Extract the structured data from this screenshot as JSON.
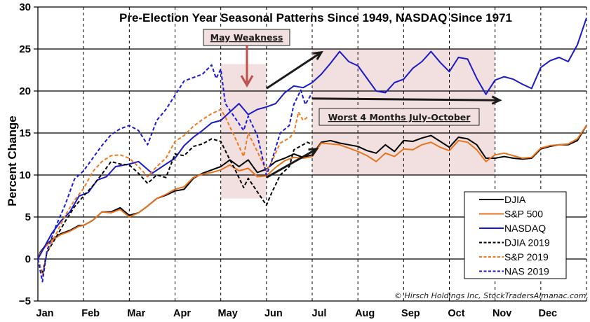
{
  "chart_data": {
    "type": "line",
    "title": "Pre-Election Year Seasonal Patterns Since 1949, NASDAQ Since 1971",
    "xlabel": "",
    "ylabel": "Percent Change",
    "ylim": [
      -5,
      30
    ],
    "yticks": [
      -5,
      0,
      5,
      10,
      15,
      20,
      25,
      30
    ],
    "xlim": [
      0,
      12
    ],
    "categories": [
      "Jan",
      "Feb",
      "Mar",
      "Apr",
      "May",
      "Jun",
      "Jul",
      "Aug",
      "Sep",
      "Oct",
      "Nov",
      "Dec"
    ],
    "grid": {
      "horizontal": "solid",
      "vertical": "dashed"
    },
    "legend": {
      "placement": "bottom-right",
      "entries": [
        "DJIA",
        "S&P 500",
        "NASDAQ",
        "DJIA 2019",
        "S&P 2019",
        "NAS 2019"
      ]
    },
    "series": [
      {
        "name": "DJIA",
        "color": "#000000",
        "style": "solid",
        "points": [
          [
            0,
            0
          ],
          [
            0.05,
            0.8
          ],
          [
            0.15,
            1.5
          ],
          [
            0.3,
            2.3
          ],
          [
            0.5,
            3.0
          ],
          [
            0.7,
            3.4
          ],
          [
            0.9,
            4.0
          ],
          [
            1.0,
            4.0
          ],
          [
            1.2,
            4.6
          ],
          [
            1.4,
            5.6
          ],
          [
            1.6,
            5.6
          ],
          [
            1.8,
            6.1
          ],
          [
            2.0,
            5.2
          ],
          [
            2.2,
            5.5
          ],
          [
            2.4,
            6.3
          ],
          [
            2.6,
            7.2
          ],
          [
            2.8,
            7.6
          ],
          [
            3.0,
            8.1
          ],
          [
            3.2,
            8.3
          ],
          [
            3.4,
            9.6
          ],
          [
            3.6,
            10.2
          ],
          [
            3.8,
            10.6
          ],
          [
            4.0,
            11.0
          ],
          [
            4.2,
            11.8
          ],
          [
            4.4,
            11.0
          ],
          [
            4.6,
            11.8
          ],
          [
            4.8,
            10.3
          ],
          [
            5.0,
            10.7
          ],
          [
            5.2,
            11.6
          ],
          [
            5.4,
            12.0
          ],
          [
            5.6,
            12.5
          ],
          [
            5.8,
            12.1
          ],
          [
            6.0,
            12.4
          ],
          [
            6.2,
            13.9
          ],
          [
            6.4,
            14.1
          ],
          [
            6.6,
            13.8
          ],
          [
            6.8,
            13.6
          ],
          [
            7.0,
            13.4
          ],
          [
            7.2,
            12.9
          ],
          [
            7.4,
            12.6
          ],
          [
            7.6,
            13.6
          ],
          [
            7.8,
            12.8
          ],
          [
            8.0,
            14.1
          ],
          [
            8.2,
            14.0
          ],
          [
            8.4,
            14.4
          ],
          [
            8.6,
            14.7
          ],
          [
            8.8,
            14.0
          ],
          [
            9.0,
            13.3
          ],
          [
            9.2,
            14.5
          ],
          [
            9.4,
            14.3
          ],
          [
            9.6,
            13.6
          ],
          [
            9.8,
            12.0
          ],
          [
            10.0,
            12.0
          ],
          [
            10.2,
            12.2
          ],
          [
            10.4,
            12.0
          ],
          [
            10.6,
            11.9
          ],
          [
            10.8,
            12.0
          ],
          [
            11.0,
            13.1
          ],
          [
            11.2,
            13.4
          ],
          [
            11.4,
            13.6
          ],
          [
            11.6,
            13.6
          ],
          [
            11.8,
            14.1
          ],
          [
            12.0,
            15.9
          ]
        ]
      },
      {
        "name": "S&P 500",
        "color": "#e8731d",
        "style": "solid",
        "points": [
          [
            0,
            0
          ],
          [
            0.05,
            0.7
          ],
          [
            0.15,
            1.4
          ],
          [
            0.3,
            2.2
          ],
          [
            0.5,
            2.9
          ],
          [
            0.7,
            3.3
          ],
          [
            0.9,
            3.9
          ],
          [
            1.0,
            4.0
          ],
          [
            1.2,
            4.6
          ],
          [
            1.4,
            5.6
          ],
          [
            1.6,
            5.5
          ],
          [
            1.8,
            5.9
          ],
          [
            2.0,
            5.0
          ],
          [
            2.2,
            5.5
          ],
          [
            2.4,
            6.3
          ],
          [
            2.6,
            7.2
          ],
          [
            2.8,
            7.7
          ],
          [
            3.0,
            8.3
          ],
          [
            3.2,
            8.6
          ],
          [
            3.4,
            9.7
          ],
          [
            3.6,
            10.1
          ],
          [
            3.8,
            10.3
          ],
          [
            4.0,
            10.6
          ],
          [
            4.2,
            11.2
          ],
          [
            4.4,
            10.5
          ],
          [
            4.6,
            10.8
          ],
          [
            4.8,
            9.8
          ],
          [
            5.0,
            9.9
          ],
          [
            5.2,
            10.9
          ],
          [
            5.4,
            11.7
          ],
          [
            5.6,
            12.1
          ],
          [
            5.8,
            12.0
          ],
          [
            6.0,
            12.2
          ],
          [
            6.2,
            13.8
          ],
          [
            6.4,
            13.7
          ],
          [
            6.6,
            13.6
          ],
          [
            6.8,
            13.2
          ],
          [
            7.0,
            12.8
          ],
          [
            7.2,
            12.3
          ],
          [
            7.4,
            11.6
          ],
          [
            7.6,
            12.6
          ],
          [
            7.8,
            12.2
          ],
          [
            8.0,
            13.1
          ],
          [
            8.2,
            13.0
          ],
          [
            8.4,
            13.6
          ],
          [
            8.6,
            13.9
          ],
          [
            8.8,
            13.3
          ],
          [
            9.0,
            12.9
          ],
          [
            9.2,
            14.1
          ],
          [
            9.4,
            13.9
          ],
          [
            9.6,
            13.0
          ],
          [
            9.8,
            11.6
          ],
          [
            10.0,
            12.4
          ],
          [
            10.2,
            12.6
          ],
          [
            10.4,
            12.3
          ],
          [
            10.6,
            12.0
          ],
          [
            10.8,
            12.1
          ],
          [
            11.0,
            13.2
          ],
          [
            11.2,
            13.5
          ],
          [
            11.4,
            13.6
          ],
          [
            11.6,
            13.7
          ],
          [
            11.8,
            14.3
          ],
          [
            12.0,
            15.9
          ]
        ]
      },
      {
        "name": "NASDAQ",
        "color": "#1919c8",
        "style": "solid",
        "points": [
          [
            0,
            0
          ],
          [
            0.1,
            1.0
          ],
          [
            0.3,
            3.0
          ],
          [
            0.5,
            4.5
          ],
          [
            0.7,
            5.6
          ],
          [
            0.9,
            7.5
          ],
          [
            1.1,
            7.9
          ],
          [
            1.3,
            9.4
          ],
          [
            1.5,
            9.8
          ],
          [
            1.7,
            11.0
          ],
          [
            2.0,
            11.3
          ],
          [
            2.2,
            11.6
          ],
          [
            2.5,
            10.2
          ],
          [
            2.8,
            11.3
          ],
          [
            3.0,
            12.0
          ],
          [
            3.2,
            13.5
          ],
          [
            3.4,
            14.5
          ],
          [
            3.6,
            15.3
          ],
          [
            3.8,
            16.2
          ],
          [
            4.0,
            16.5
          ],
          [
            4.2,
            17.5
          ],
          [
            4.4,
            18.5
          ],
          [
            4.6,
            17.2
          ],
          [
            4.8,
            17.8
          ],
          [
            5.0,
            18.1
          ],
          [
            5.2,
            18.5
          ],
          [
            5.4,
            19.8
          ],
          [
            5.6,
            20.6
          ],
          [
            5.8,
            20.4
          ],
          [
            6.0,
            21.0
          ],
          [
            6.2,
            22.0
          ],
          [
            6.4,
            23.3
          ],
          [
            6.6,
            24.7
          ],
          [
            6.8,
            23.5
          ],
          [
            7.0,
            23.0
          ],
          [
            7.2,
            21.5
          ],
          [
            7.4,
            20.0
          ],
          [
            7.6,
            19.8
          ],
          [
            7.8,
            21.0
          ],
          [
            8.0,
            21.4
          ],
          [
            8.2,
            22.7
          ],
          [
            8.4,
            23.5
          ],
          [
            8.6,
            24.7
          ],
          [
            8.8,
            23.4
          ],
          [
            9.0,
            22.3
          ],
          [
            9.2,
            24.0
          ],
          [
            9.4,
            23.8
          ],
          [
            9.6,
            21.5
          ],
          [
            9.8,
            19.6
          ],
          [
            10.0,
            21.3
          ],
          [
            10.2,
            21.7
          ],
          [
            10.4,
            21.4
          ],
          [
            10.6,
            20.8
          ],
          [
            10.8,
            20.3
          ],
          [
            11.0,
            22.8
          ],
          [
            11.2,
            23.6
          ],
          [
            11.4,
            24.0
          ],
          [
            11.6,
            23.5
          ],
          [
            11.8,
            25.5
          ],
          [
            12.0,
            28.7
          ]
        ]
      },
      {
        "name": "DJIA 2019",
        "color": "#000000",
        "style": "dashed",
        "points": [
          [
            0,
            0
          ],
          [
            0.1,
            -1.8
          ],
          [
            0.2,
            0.8
          ],
          [
            0.4,
            2.6
          ],
          [
            0.6,
            4.5
          ],
          [
            0.8,
            6.2
          ],
          [
            1.0,
            7.5
          ],
          [
            1.2,
            8.7
          ],
          [
            1.4,
            10.1
          ],
          [
            1.6,
            11.6
          ],
          [
            1.8,
            11.3
          ],
          [
            2.0,
            11.2
          ],
          [
            2.2,
            10.2
          ],
          [
            2.4,
            9.0
          ],
          [
            2.6,
            10.0
          ],
          [
            2.8,
            9.7
          ],
          [
            3.0,
            12.5
          ],
          [
            3.2,
            12.3
          ],
          [
            3.4,
            13.4
          ],
          [
            3.6,
            13.7
          ],
          [
            3.8,
            14.3
          ],
          [
            4.0,
            14.0
          ],
          [
            4.2,
            11.8
          ],
          [
            4.3,
            10.8
          ],
          [
            4.5,
            8.5
          ],
          [
            4.6,
            9.6
          ],
          [
            4.8,
            8.0
          ],
          [
            5.0,
            6.4
          ],
          [
            5.1,
            7.7
          ],
          [
            5.3,
            10.0
          ],
          [
            5.5,
            11.0
          ],
          [
            5.6,
            13.0
          ],
          [
            5.8,
            13.6
          ],
          [
            5.9,
            13.9
          ],
          [
            6.0,
            13.6
          ]
        ]
      },
      {
        "name": "S&P 2019",
        "color": "#f07a20",
        "style": "dashed",
        "points": [
          [
            0,
            0
          ],
          [
            0.1,
            -2.0
          ],
          [
            0.2,
            0.8
          ],
          [
            0.4,
            3.0
          ],
          [
            0.6,
            5.2
          ],
          [
            0.8,
            7.0
          ],
          [
            1.0,
            8.4
          ],
          [
            1.2,
            10.4
          ],
          [
            1.4,
            11.6
          ],
          [
            1.6,
            12.3
          ],
          [
            1.8,
            12.4
          ],
          [
            2.0,
            12.0
          ],
          [
            2.2,
            11.0
          ],
          [
            2.4,
            9.8
          ],
          [
            2.6,
            11.0
          ],
          [
            2.8,
            12.0
          ],
          [
            3.0,
            14.0
          ],
          [
            3.2,
            14.7
          ],
          [
            3.4,
            15.8
          ],
          [
            3.6,
            16.6
          ],
          [
            3.8,
            17.3
          ],
          [
            4.0,
            17.8
          ],
          [
            4.1,
            16.9
          ],
          [
            4.3,
            14.6
          ],
          [
            4.5,
            12.2
          ],
          [
            4.6,
            15.0
          ],
          [
            4.8,
            12.8
          ],
          [
            5.0,
            10.5
          ],
          [
            5.1,
            11.4
          ],
          [
            5.3,
            13.8
          ],
          [
            5.5,
            14.4
          ],
          [
            5.6,
            15.0
          ],
          [
            5.7,
            17.5
          ],
          [
            5.8,
            16.5
          ],
          [
            5.9,
            16.9
          ]
        ]
      },
      {
        "name": "NAS 2019",
        "color": "#1a1ad2",
        "style": "dashed",
        "points": [
          [
            0,
            0
          ],
          [
            0.1,
            -2.7
          ],
          [
            0.2,
            1.0
          ],
          [
            0.4,
            4.0
          ],
          [
            0.6,
            6.5
          ],
          [
            0.8,
            9.5
          ],
          [
            1.0,
            10.5
          ],
          [
            1.2,
            12.0
          ],
          [
            1.4,
            13.5
          ],
          [
            1.6,
            14.8
          ],
          [
            1.8,
            15.5
          ],
          [
            2.0,
            15.9
          ],
          [
            2.2,
            15.3
          ],
          [
            2.4,
            13.6
          ],
          [
            2.6,
            16.5
          ],
          [
            2.8,
            17.8
          ],
          [
            3.0,
            19.5
          ],
          [
            3.2,
            21.2
          ],
          [
            3.4,
            21.6
          ],
          [
            3.6,
            22.0
          ],
          [
            3.8,
            23.1
          ],
          [
            3.9,
            21.5
          ],
          [
            4.0,
            22.6
          ],
          [
            4.1,
            18.5
          ],
          [
            4.3,
            16.9
          ],
          [
            4.5,
            15.3
          ],
          [
            4.6,
            17.0
          ],
          [
            4.8,
            14.7
          ],
          [
            5.0,
            10.0
          ],
          [
            5.1,
            11.4
          ],
          [
            5.3,
            15.0
          ],
          [
            5.5,
            15.9
          ],
          [
            5.6,
            18.4
          ],
          [
            5.75,
            20.1
          ],
          [
            5.85,
            18.4
          ],
          [
            6.0,
            19.8
          ]
        ]
      }
    ],
    "annotations": [
      {
        "text": "May Weakness",
        "type": "callout-box",
        "region": "May",
        "arrow": "down"
      },
      {
        "text": "Worst 4 Months July-October",
        "type": "callout-box",
        "region": "Jul-Oct"
      },
      {
        "text": "© Hirsch Holdings Inc, StockTradersAlmanac.com. All rights reserved.",
        "type": "copyright"
      }
    ],
    "shaded_regions": [
      {
        "label": "May",
        "x": [
          4.0,
          5.0
        ],
        "y": [
          7.2,
          23.2
        ]
      },
      {
        "label": "Worst 4 Months",
        "x": [
          6.0,
          10.0
        ],
        "y": [
          10.0,
          25.0
        ]
      }
    ],
    "arrows": [
      {
        "from": [
          5.0,
          20.3
        ],
        "to": [
          6.2,
          24.6
        ]
      },
      {
        "from": [
          6.0,
          19.1
        ],
        "to": [
          10.1,
          18.9
        ]
      },
      {
        "from": [
          5.0,
          9.7
        ],
        "to": [
          6.1,
          13.1
        ]
      }
    ]
  }
}
